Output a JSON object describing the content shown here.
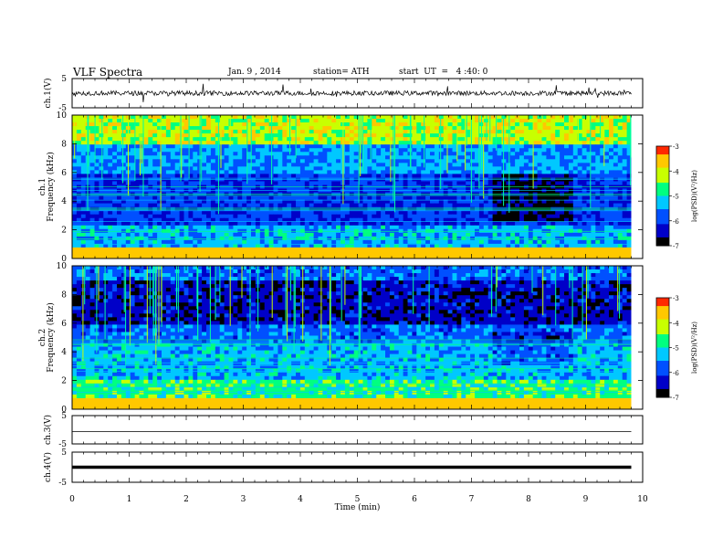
{
  "header": {
    "title": "VLF  Spectra",
    "date": "Jan. 9 , 2014",
    "station": "station= ATH",
    "start": "start  UT  =   4 :40: 0"
  },
  "chart_data": [
    {
      "type": "line",
      "panel": "ch1-waveform",
      "ylabel": "ch.1(V)",
      "yticks": [
        "5",
        "-5"
      ],
      "ylim": [
        -5,
        5
      ],
      "level": 0,
      "style": "noisy broadband waveform"
    },
    {
      "type": "heatmap",
      "panel": "ch1-spectrogram",
      "ylabel": "ch.1  Frequency  (kHz)",
      "ylabel_line1": "ch.1",
      "ylabel_line2": "Frequency  (kHz)",
      "yticks": [
        "0",
        "2",
        "4",
        "6",
        "8",
        "10"
      ],
      "ylim": [
        0,
        10
      ],
      "x_range_min": [
        0,
        9.8
      ],
      "colorbar_ticks": [
        "-3",
        "-4",
        "-5",
        "-6",
        "-7"
      ],
      "colorbar_label": "log(PSD)(V²/Hz)"
    },
    {
      "type": "heatmap",
      "panel": "ch2-spectrogram",
      "ylabel": "ch.2  Frequency  (kHz)",
      "ylabel_line1": "ch.2",
      "ylabel_line2": "Frequency  (kHz)",
      "yticks": [
        "0",
        "2",
        "4",
        "6",
        "8",
        "10"
      ],
      "ylim": [
        0,
        10
      ],
      "x_range_min": [
        0,
        9.8
      ],
      "colorbar_ticks": [
        "-3",
        "-4",
        "-5",
        "-6",
        "-7"
      ],
      "colorbar_label": "log(PSD)(V²/Hz)"
    },
    {
      "type": "line",
      "panel": "ch3-waveform",
      "ylabel": "ch.3(V)",
      "yticks": [
        "5",
        "-5"
      ],
      "ylim": [
        -5,
        5
      ],
      "level": 0
    },
    {
      "type": "line",
      "panel": "ch4-waveform",
      "ylabel": "ch.4(V)",
      "yticks": [
        "5",
        "-5"
      ],
      "ylim": [
        -5,
        5
      ],
      "level": 0
    }
  ],
  "xaxis": {
    "label": "Time  (min)",
    "ticks": [
      "0",
      "1",
      "2",
      "3",
      "4",
      "5",
      "6",
      "7",
      "8",
      "9",
      "10"
    ],
    "xlim": [
      0,
      10
    ]
  },
  "colors": {
    "colormap": [
      "#000000",
      "#0000c8",
      "#0050ff",
      "#00c8ff",
      "#00ff80",
      "#c8ff00",
      "#ffc800",
      "#ff2800"
    ]
  }
}
